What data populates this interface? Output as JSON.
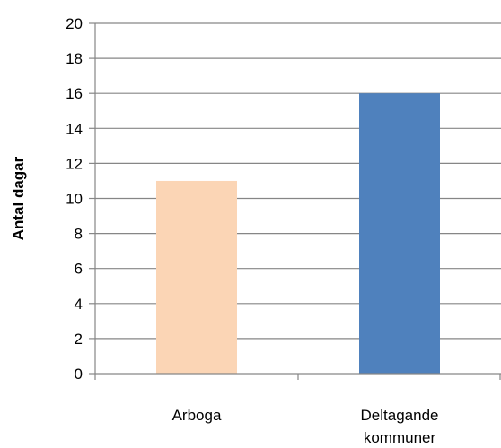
{
  "chart_data": {
    "type": "bar",
    "title": "",
    "xlabel": "",
    "ylabel": "Antal dagar",
    "ylim": [
      0,
      20
    ],
    "ytick_step": 2,
    "yticks": [
      "0",
      "2",
      "4",
      "6",
      "8",
      "10",
      "12",
      "14",
      "16",
      "18",
      "20"
    ],
    "grid": true,
    "legend": "none",
    "categories": [
      [
        "Arboga"
      ],
      [
        "Deltagande",
        "kommuner"
      ]
    ],
    "values": [
      11,
      16
    ],
    "bar_colors": [
      "#fbd5b5",
      "#4f81bd"
    ],
    "gridline_color": "#868686",
    "axis_color": "#868686"
  }
}
